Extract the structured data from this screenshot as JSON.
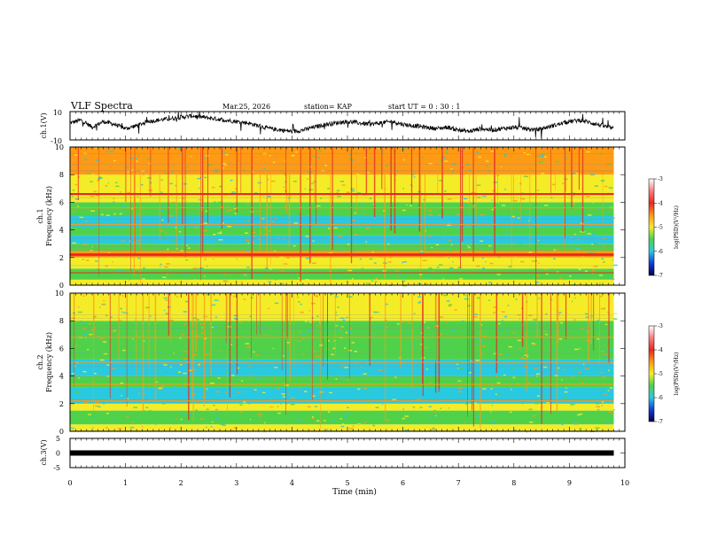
{
  "header": {
    "title": "VLF Spectra",
    "date": "Mar.25, 2026",
    "station": "station= KAP",
    "start_ut": "start  UT  =   0  : 30 : 1"
  },
  "colors": {
    "black": "#000000",
    "red": "#e8281e",
    "orange": "#ff9a14",
    "yellow": "#f5ec28",
    "green": "#4fd24a",
    "cyan": "#29c9e0",
    "blue": "#1438d8"
  },
  "chart_data": [
    {
      "type": "line",
      "id": "ch1-waveform",
      "ylabel": "ch.1(V)",
      "ylim": [
        -10,
        10
      ],
      "yticks": [
        "10",
        "-10"
      ],
      "x_range_min": [
        0,
        9.8
      ],
      "x": [
        0,
        0.2,
        0.4,
        0.6,
        0.8,
        1.0,
        1.2,
        1.4,
        1.6,
        1.8,
        2.0,
        2.2,
        2.4,
        2.6,
        2.8,
        3.0,
        3.2,
        3.4,
        3.6,
        3.8,
        4.0,
        4.2,
        4.4,
        4.6,
        4.8,
        5.0,
        5.2,
        5.4,
        5.6,
        5.8,
        6.0,
        6.2,
        6.4,
        6.6,
        6.8,
        7.0,
        7.2,
        7.4,
        7.6,
        7.8,
        8.0,
        8.2,
        8.4,
        8.6,
        8.8,
        9.0,
        9.2,
        9.4,
        9.6,
        9.8
      ],
      "values": [
        2,
        4,
        -1,
        3,
        1,
        -2,
        0,
        3,
        4,
        5,
        6,
        7,
        6,
        5,
        4,
        3,
        2,
        0,
        -2,
        -3,
        -4,
        -3,
        -1,
        1,
        2,
        3,
        2,
        1,
        2,
        3,
        1,
        0,
        -1,
        -2,
        -1,
        -3,
        -4,
        -2,
        -3,
        -2,
        -1,
        -2,
        -3,
        -1,
        1,
        3,
        4,
        2,
        0,
        -2
      ]
    },
    {
      "type": "heatmap",
      "id": "ch1-spectrogram",
      "ylabel": "ch.1\nFrequency (kHz)",
      "yticks": [
        "0",
        "2",
        "4",
        "6",
        "8",
        "10"
      ],
      "ylim": [
        0,
        10
      ],
      "x_range_min": [
        0,
        9.8
      ],
      "colorbar": {
        "label": "log(PSD)(V²/Hz)",
        "ticks": [
          "-3",
          "-4",
          "-5",
          "-6",
          "-7"
        ],
        "range": [
          -7,
          -3
        ]
      },
      "bands": [
        {
          "from_khz": 0.0,
          "to_khz": 0.4,
          "color": "yellow"
        },
        {
          "from_khz": 0.4,
          "to_khz": 1.2,
          "color": "green"
        },
        {
          "from_khz": 1.2,
          "to_khz": 2.0,
          "color": "yellow"
        },
        {
          "from_khz": 2.0,
          "to_khz": 2.5,
          "color": "orange"
        },
        {
          "from_khz": 2.5,
          "to_khz": 3.0,
          "color": "green"
        },
        {
          "from_khz": 3.0,
          "to_khz": 3.6,
          "color": "cyan"
        },
        {
          "from_khz": 3.6,
          "to_khz": 4.2,
          "color": "green"
        },
        {
          "from_khz": 4.2,
          "to_khz": 5.0,
          "color": "cyan"
        },
        {
          "from_khz": 5.0,
          "to_khz": 6.0,
          "color": "green"
        },
        {
          "from_khz": 6.0,
          "to_khz": 8.0,
          "color": "yellow"
        },
        {
          "from_khz": 8.0,
          "to_khz": 10.0,
          "color": "orange"
        }
      ],
      "lines_khz": [
        {
          "khz": 2.2,
          "color": "red",
          "width": 3
        },
        {
          "khz": 6.6,
          "color": "red",
          "width": 2
        },
        {
          "khz": 0.9,
          "color": "red",
          "width": 1
        },
        {
          "khz": 4.4,
          "color": "orange",
          "width": 1
        },
        {
          "khz": 5.6,
          "color": "orange",
          "width": 1
        }
      ]
    },
    {
      "type": "heatmap",
      "id": "ch2-spectrogram",
      "ylabel": "ch.2\nFrequency (kHz)",
      "yticks": [
        "0",
        "2",
        "4",
        "6",
        "8",
        "10"
      ],
      "ylim": [
        0,
        10
      ],
      "x_range_min": [
        0,
        9.8
      ],
      "colorbar": {
        "label": "log(PSD)(V²/Hz)",
        "ticks": [
          "-3",
          "-4",
          "-5",
          "-6",
          "-7"
        ],
        "range": [
          -7,
          -3
        ]
      },
      "bands": [
        {
          "from_khz": 0.0,
          "to_khz": 0.5,
          "color": "yellow"
        },
        {
          "from_khz": 0.5,
          "to_khz": 1.5,
          "color": "green"
        },
        {
          "from_khz": 1.5,
          "to_khz": 2.0,
          "color": "yellow"
        },
        {
          "from_khz": 2.0,
          "to_khz": 3.2,
          "color": "cyan"
        },
        {
          "from_khz": 3.2,
          "to_khz": 4.0,
          "color": "green"
        },
        {
          "from_khz": 4.0,
          "to_khz": 5.2,
          "color": "cyan"
        },
        {
          "from_khz": 5.2,
          "to_khz": 8.0,
          "color": "green"
        },
        {
          "from_khz": 8.0,
          "to_khz": 10.0,
          "color": "yellow"
        }
      ],
      "lines_khz": [
        {
          "khz": 2.2,
          "color": "orange",
          "width": 1
        },
        {
          "khz": 3.4,
          "color": "orange",
          "width": 1
        },
        {
          "khz": 5.0,
          "color": "orange",
          "width": 1
        },
        {
          "khz": 6.8,
          "color": "orange",
          "width": 1
        }
      ]
    },
    {
      "type": "line",
      "id": "ch3-waveform",
      "ylabel": "ch.3(V)",
      "ylim": [
        -5,
        5
      ],
      "yticks": [
        "5",
        "0",
        "-5"
      ],
      "x_range_min": [
        0,
        9.8
      ],
      "values_constant": 0
    }
  ],
  "xaxis": {
    "label": "Time  (min)",
    "ticks": [
      "0",
      "1",
      "2",
      "3",
      "4",
      "5",
      "6",
      "7",
      "8",
      "9",
      "10"
    ],
    "range": [
      0,
      10
    ]
  }
}
